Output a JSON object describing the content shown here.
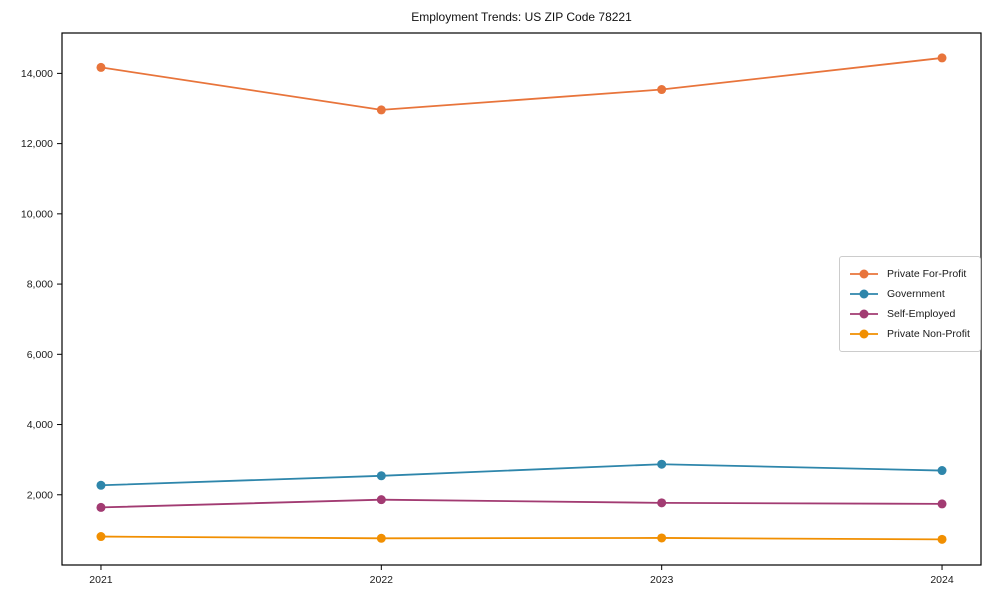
{
  "title": "Employment Trends: US ZIP Code 78221",
  "chart_data": {
    "type": "line",
    "title": "Employment Trends: US ZIP Code 78221",
    "x": [
      "2021",
      "2022",
      "2023",
      "2024"
    ],
    "series": [
      {
        "name": "Private For-Profit",
        "color": "#e8743b",
        "values": [
          14170,
          12960,
          13540,
          14440
        ]
      },
      {
        "name": "Government",
        "color": "#2e86ab",
        "values": [
          2270,
          2540,
          2870,
          2690
        ]
      },
      {
        "name": "Self-Employed",
        "color": "#a23b72",
        "values": [
          1640,
          1860,
          1770,
          1740
        ]
      },
      {
        "name": "Private Non-Profit",
        "color": "#f18f01",
        "values": [
          810,
          760,
          770,
          730
        ]
      }
    ],
    "xlabel": "",
    "ylabel": "",
    "ylim": [
      0,
      15150
    ],
    "yticks": [
      2000,
      4000,
      6000,
      8000,
      10000,
      12000,
      14000
    ],
    "ytick_labels": [
      "2,000",
      "4,000",
      "6,000",
      "8,000",
      "10,000",
      "12,000",
      "14,000"
    ],
    "grid": false,
    "legend_position": "center-right",
    "marker": "circle",
    "axis_color": "#000000",
    "text_color": "#1a1a1a",
    "legend_border_color": "#cccccc"
  }
}
